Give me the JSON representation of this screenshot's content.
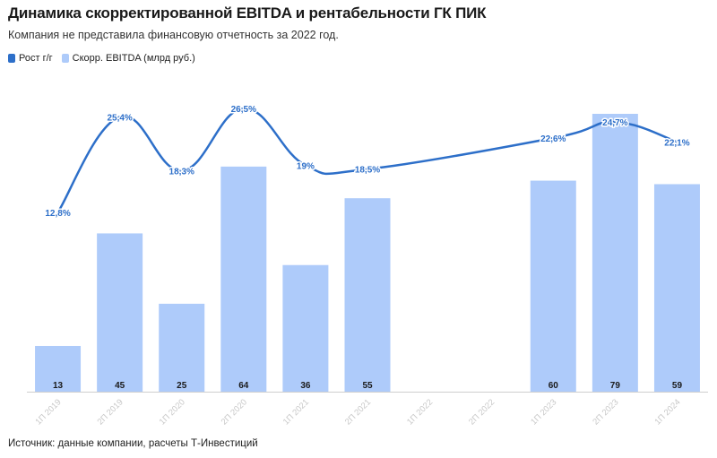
{
  "header": {
    "title": "Динамика скорректированной EBITDA и рентабельности ГК ПИК",
    "subtitle": "Компания не представила финансовую отчетность за 2022 год."
  },
  "footer": {
    "source": "Источник: данные компании, расчеты Т-Инвестиций"
  },
  "colors": {
    "bar": "#aecbfa",
    "line": "#2d6fc9",
    "bar_label": "#1a1a1a",
    "axis": "#cfcfcf",
    "tick_label": "#c8c8c8"
  },
  "chart_data": {
    "type": "bar",
    "categories": [
      "1П 2019",
      "2П 2019",
      "1П 2020",
      "2П 2020",
      "1П 2021",
      "2П 2021",
      "1П 2022",
      "2П 2022",
      "1П 2023",
      "2П 2023",
      "1П 2024"
    ],
    "series": [
      {
        "name": "Скорр. EBITDA (млрд руб.)",
        "type": "bar",
        "values": [
          13,
          45,
          25,
          64,
          36,
          55,
          null,
          null,
          60,
          79,
          59
        ],
        "labels": [
          "13",
          "45",
          "25",
          "64",
          "36",
          "55",
          "",
          "",
          "60",
          "79",
          "59"
        ]
      },
      {
        "name": "Рост г/г",
        "type": "line",
        "smooth": true,
        "values": [
          12.8,
          25.4,
          18.3,
          26.5,
          19.0,
          18.5,
          null,
          null,
          22.6,
          24.7,
          22.1
        ],
        "labels": [
          "12,8%",
          "25,4%",
          "18,3%",
          "26,5%",
          "19%",
          "18,5%",
          "",
          "",
          "22,6%",
          "24,7%",
          "22,1%"
        ]
      }
    ],
    "legend_position": "top-left",
    "grid": false
  }
}
